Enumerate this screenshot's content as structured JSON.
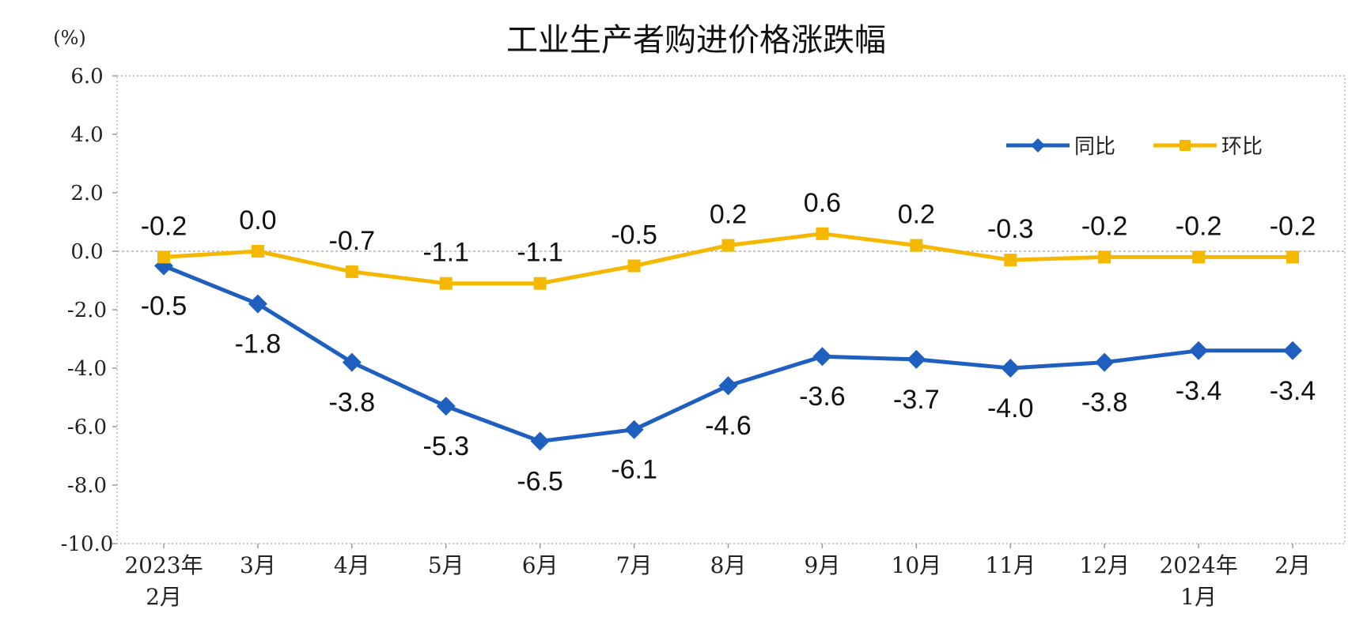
{
  "chart_data": {
    "type": "line",
    "title": "工业生产者购进价格涨跌幅",
    "unit_label": "(%)",
    "ylim": [
      -10.0,
      6.0
    ],
    "y_ticks": [
      "6.0",
      "4.0",
      "2.0",
      "0.0",
      "-2.0",
      "-4.0",
      "-6.0",
      "-8.0",
      "-10.0"
    ],
    "categories": [
      [
        "2023年",
        "2月"
      ],
      [
        "3月"
      ],
      [
        "4月"
      ],
      [
        "5月"
      ],
      [
        "6月"
      ],
      [
        "7月"
      ],
      [
        "8月"
      ],
      [
        "9月"
      ],
      [
        "10月"
      ],
      [
        "11月"
      ],
      [
        "12月"
      ],
      [
        "2024年",
        "1月"
      ],
      [
        "2月"
      ]
    ],
    "series": [
      {
        "name": "同比",
        "color": "#1f5fbf",
        "marker": "diamond",
        "values": [
          -0.5,
          -1.8,
          -3.8,
          -5.3,
          -6.5,
          -6.1,
          -4.6,
          -3.6,
          -3.7,
          -4.0,
          -3.8,
          -3.4,
          -3.4
        ],
        "labels": [
          "-0.5",
          "-1.8",
          "-3.8",
          "-5.3",
          "-6.5",
          "-6.1",
          "-4.6",
          "-3.6",
          "-3.7",
          "-4.0",
          "-3.8",
          "-3.4",
          "-3.4"
        ]
      },
      {
        "name": "环比",
        "color": "#f5b800",
        "marker": "square",
        "values": [
          -0.2,
          0.0,
          -0.7,
          -1.1,
          -1.1,
          -0.5,
          0.2,
          0.6,
          0.2,
          -0.3,
          -0.2,
          -0.2,
          -0.2
        ],
        "labels": [
          "-0.2",
          "0.0",
          "-0.7",
          "-1.1",
          "-1.1",
          "-0.5",
          "0.2",
          "0.6",
          "0.2",
          "-0.3",
          "-0.2",
          "-0.2",
          "-0.2"
        ]
      }
    ],
    "grid": "dotted-border-and-zero-line",
    "legend_position": "top-right"
  }
}
